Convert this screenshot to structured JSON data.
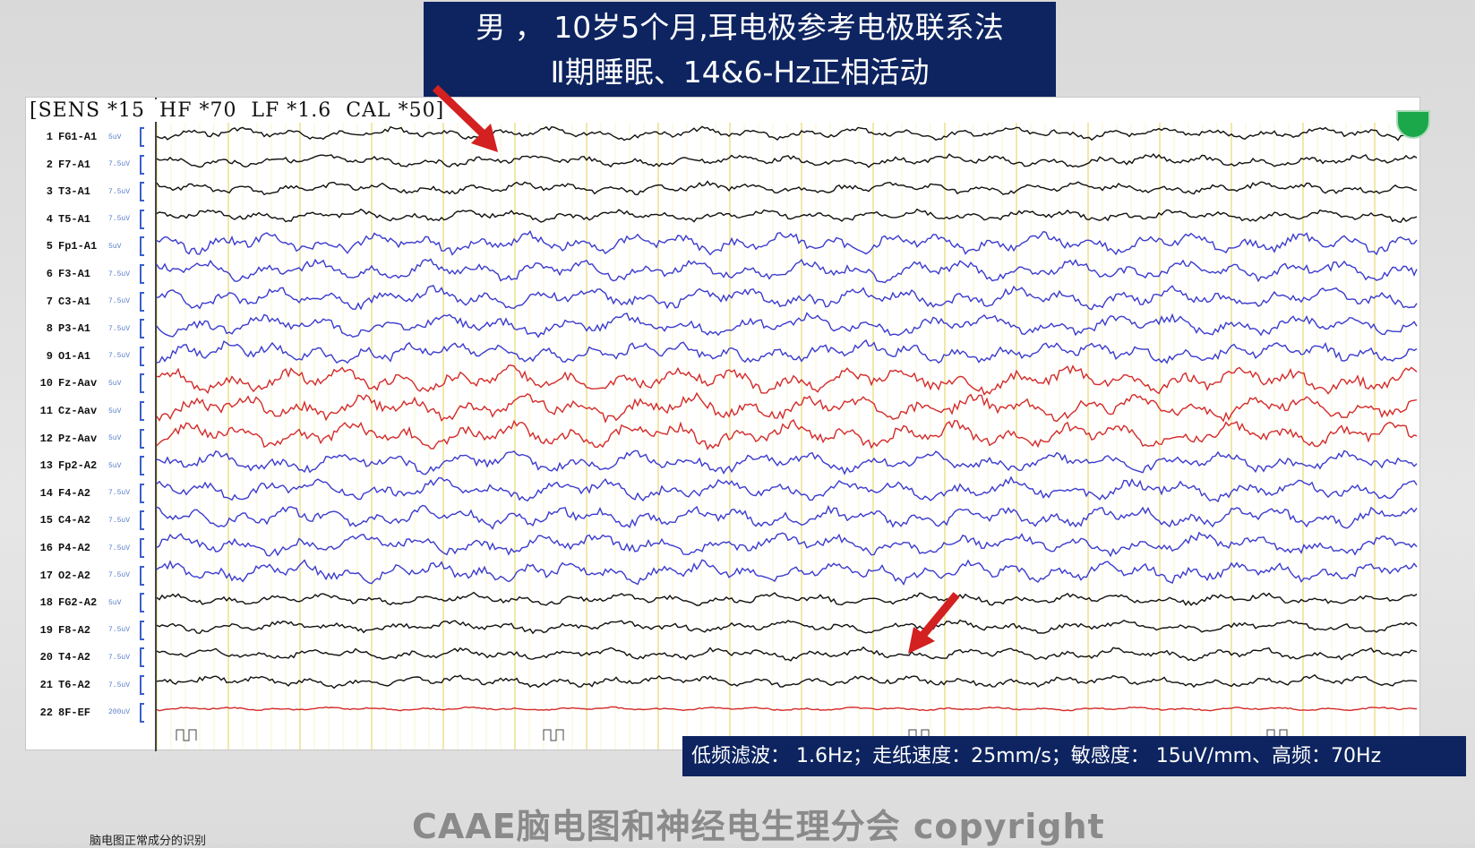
{
  "title": {
    "line1": "男 ， 10岁5个月,耳电极参考电极联系法",
    "line2": "Ⅱ期睡眠、14&6-Hz正相活动"
  },
  "settings_text": "[SENS *15  HF *70  LF *1.6  CAL *50]",
  "channels": [
    {
      "num": "1",
      "name": "FG1-A1",
      "sens": "5uV",
      "color": "#111111"
    },
    {
      "num": "2",
      "name": "F7-A1",
      "sens": "7.5uV",
      "color": "#111111"
    },
    {
      "num": "3",
      "name": "T3-A1",
      "sens": "7.5uV",
      "color": "#111111"
    },
    {
      "num": "4",
      "name": "T5-A1",
      "sens": "7.5uV",
      "color": "#111111"
    },
    {
      "num": "5",
      "name": "Fp1-A1",
      "sens": "5uV",
      "color": "#3b3bcf"
    },
    {
      "num": "6",
      "name": "F3-A1",
      "sens": "7.5uV",
      "color": "#3b3bcf"
    },
    {
      "num": "7",
      "name": "C3-A1",
      "sens": "7.5uV",
      "color": "#3b3bcf"
    },
    {
      "num": "8",
      "name": "P3-A1",
      "sens": "7.5uV",
      "color": "#3b3bcf"
    },
    {
      "num": "9",
      "name": "O1-A1",
      "sens": "7.5uV",
      "color": "#3b3bcf"
    },
    {
      "num": "10",
      "name": "Fz-Aav",
      "sens": "5uV",
      "color": "#d42a2a"
    },
    {
      "num": "11",
      "name": "Cz-Aav",
      "sens": "5uV",
      "color": "#d42a2a"
    },
    {
      "num": "12",
      "name": "Pz-Aav",
      "sens": "5uV",
      "color": "#d42a2a"
    },
    {
      "num": "13",
      "name": "Fp2-A2",
      "sens": "5uV",
      "color": "#3b3bcf"
    },
    {
      "num": "14",
      "name": "F4-A2",
      "sens": "7.5uV",
      "color": "#3b3bcf"
    },
    {
      "num": "15",
      "name": "C4-A2",
      "sens": "7.5uV",
      "color": "#3b3bcf"
    },
    {
      "num": "16",
      "name": "P4-A2",
      "sens": "7.5uV",
      "color": "#3b3bcf"
    },
    {
      "num": "17",
      "name": "O2-A2",
      "sens": "7.5uV",
      "color": "#3b3bcf"
    },
    {
      "num": "18",
      "name": "FG2-A2",
      "sens": "5uV",
      "color": "#111111"
    },
    {
      "num": "19",
      "name": "F8-A2",
      "sens": "7.5uV",
      "color": "#111111"
    },
    {
      "num": "20",
      "name": "T4-A2",
      "sens": "7.5uV",
      "color": "#111111"
    },
    {
      "num": "21",
      "name": "T6-A2",
      "sens": "7.5uV",
      "color": "#111111"
    },
    {
      "num": "22",
      "name": "8F-EF",
      "sens": "200uV",
      "color": "#d42a2a"
    }
  ],
  "footer_text": "低频滤波： 1.6Hz；走纸速度：25mm/s；敏感度： 15uV/mm、高频：70Hz",
  "copyright": "CAAE脑电图和神经电生理分会  copyright",
  "bottom_note": "脑电图正常成分的识别",
  "colors": {
    "title_bg": "#0d2460",
    "arrow": "#d32020",
    "grid": "#f0e68c"
  }
}
